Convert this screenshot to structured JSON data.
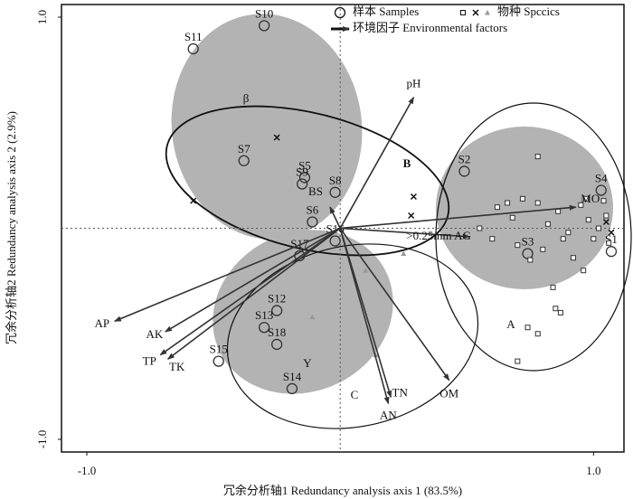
{
  "chart_data": {
    "type": "scatter",
    "x_label": "冗余分析轴1 Redundancy analysis axis 1 (83.5%)",
    "y_label": "冗余分析轴2 Redundancy analysis axis 2 (2.9%)",
    "xlim": [
      -1.1,
      1.12
    ],
    "ylim": [
      -1.06,
      1.06
    ],
    "xticks": [
      {
        "value": -1,
        "label": "-1.0"
      },
      {
        "value": 1,
        "label": "1.0"
      }
    ],
    "yticks": [
      {
        "value": -1,
        "label": "-1.0"
      },
      {
        "value": 1,
        "label": "1.0"
      }
    ],
    "legend": "top",
    "annotations": [
      "β",
      "B",
      "A",
      "Y",
      "C"
    ],
    "series": [
      {
        "name": "样本 Samples",
        "marker": "circle",
        "color": "#333333",
        "labels": [
          "S10",
          "S11",
          "S7",
          "S5",
          "S9",
          "S8",
          "S6",
          "S16",
          "S17",
          "S12",
          "S13",
          "S18",
          "S15",
          "S14",
          "S2",
          "S3",
          "S4",
          "S1"
        ],
        "x": [
          -0.3,
          -0.58,
          -0.38,
          -0.14,
          -0.15,
          -0.02,
          -0.11,
          -0.02,
          -0.16,
          -0.25,
          -0.3,
          -0.25,
          -0.48,
          -0.19,
          0.49,
          0.74,
          1.03,
          1.07
        ],
        "y": [
          0.96,
          0.85,
          0.32,
          0.24,
          0.21,
          0.17,
          0.03,
          -0.06,
          -0.13,
          -0.39,
          -0.47,
          -0.55,
          -0.63,
          -0.76,
          0.27,
          -0.12,
          0.18,
          -0.11
        ]
      },
      {
        "name": "物种 Spccics",
        "marker": "square",
        "color": "#333333",
        "x": [
          0.62,
          0.68,
          0.72,
          0.78,
          0.82,
          0.86,
          0.9,
          0.95,
          0.98,
          1.0,
          1.02,
          1.05,
          1.06,
          0.7,
          0.75,
          0.8,
          0.88,
          0.92,
          0.96,
          1.04,
          0.66,
          0.84,
          0.6,
          0.74,
          0.97,
          0.78,
          0.85,
          0.55,
          0.78,
          0.7,
          0.87
        ],
        "y": [
          0.1,
          0.05,
          0.14,
          0.12,
          0.02,
          0.08,
          -0.02,
          0.11,
          0.04,
          -0.05,
          0.0,
          0.06,
          -0.07,
          -0.08,
          -0.15,
          -0.1,
          -0.05,
          -0.14,
          -0.2,
          0.13,
          0.12,
          -0.28,
          -0.05,
          -0.47,
          0.14,
          0.34,
          -0.38,
          0.0,
          -0.5,
          -0.63,
          -0.4
        ]
      },
      {
        "marker": "cross",
        "color": "#111111",
        "x": [
          -0.25,
          0.29,
          0.28,
          -0.58,
          1.05,
          1.07
        ],
        "y": [
          0.43,
          0.15,
          0.06,
          0.13,
          0.03,
          -0.02
        ]
      },
      {
        "marker": "triangle",
        "color": "#999999",
        "x": [
          0.25,
          0.14,
          -0.11,
          0.1
        ],
        "y": [
          -0.12,
          -0.6,
          -0.42,
          -0.2
        ]
      },
      {
        "name": "环境因子 Environmental factors",
        "marker": "arrow",
        "color": "#333333",
        "labels": [
          "pH",
          "MO",
          ">0.25mm AG",
          "OM",
          "TN",
          "AN",
          "AP",
          "AK",
          "TP",
          "TK",
          "BS"
        ],
        "x": [
          0.29,
          0.93,
          0.51,
          0.43,
          0.2,
          0.19,
          -0.89,
          -0.69,
          -0.71,
          -0.68,
          -0.04
        ],
        "y": [
          0.62,
          0.1,
          -0.04,
          -0.72,
          -0.8,
          -0.83,
          -0.44,
          -0.49,
          -0.6,
          -0.62,
          0.1
        ]
      }
    ]
  }
}
